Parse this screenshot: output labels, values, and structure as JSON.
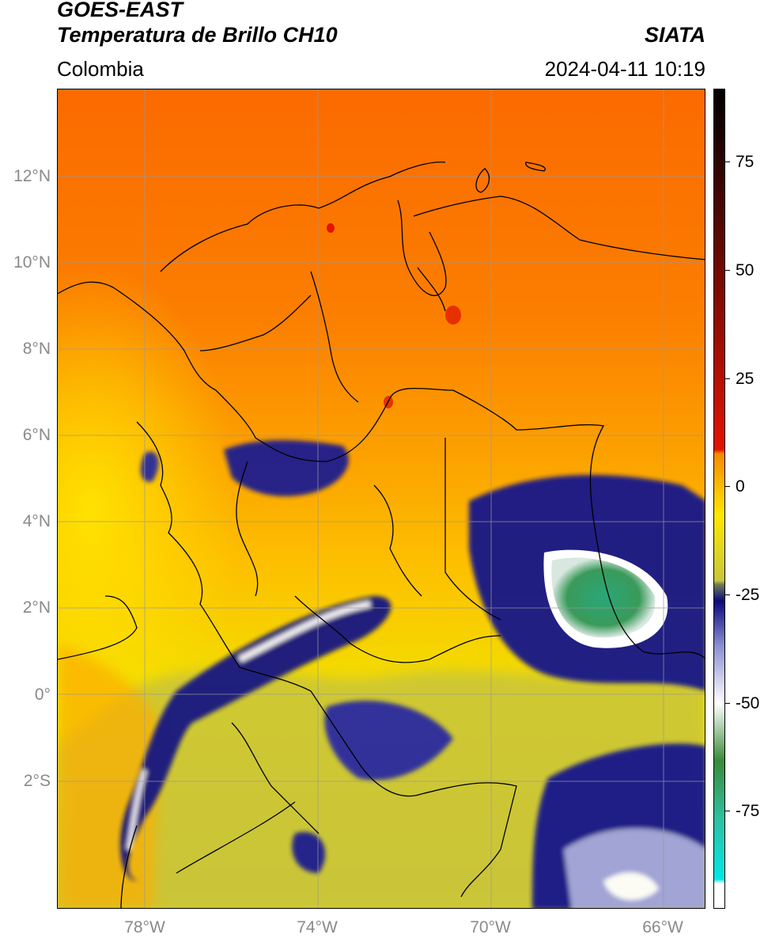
{
  "header": {
    "title_line1": "GOES-EAST",
    "title_line2": "Temperatura de Brillo CH10",
    "agency": "SIATA",
    "region": "Colombia",
    "timestamp": "2024-04-11 10:19"
  },
  "map": {
    "lat_labels": [
      "12°N",
      "10°N",
      "8°N",
      "6°N",
      "4°N",
      "2°N",
      "0°",
      "2°S"
    ],
    "lon_labels": [
      "78°W",
      "74°W",
      "70°W",
      "66°W"
    ]
  },
  "colorbar": {
    "labels": [
      "75",
      "50",
      "25",
      "0",
      "-25",
      "-50",
      "-75"
    ],
    "stops": [
      {
        "color": "#000000"
      },
      {
        "color": "#e21300"
      },
      {
        "color": "#f58a00"
      },
      {
        "color": "#ffe800"
      },
      {
        "color": "#c8c63a"
      },
      {
        "color": "#6f7a56"
      },
      {
        "color": "#0a0a7a"
      },
      {
        "color": "#8b8fd2"
      },
      {
        "color": "#ffffff"
      },
      {
        "color": "#3a8a3a"
      },
      {
        "color": "#2fbfa0"
      },
      {
        "color": "#00e8e8"
      },
      {
        "color": "#ffffff"
      }
    ]
  }
}
